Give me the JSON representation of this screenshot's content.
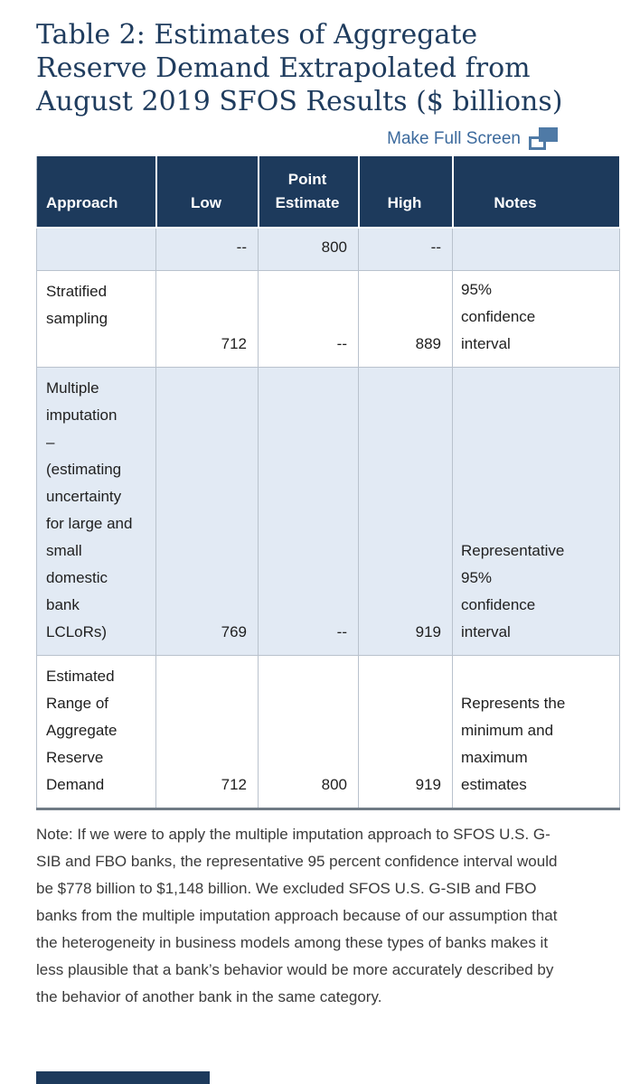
{
  "title": "Table 2: Estimates of Aggregate Reserve Demand Extrapolated from August 2019 SFOS Results ($ billions)",
  "fullscreen": {
    "label": "Make Full Screen"
  },
  "table": {
    "columns": [
      {
        "label": "Approach"
      },
      {
        "label": "Low"
      },
      {
        "label": "Point Estimate"
      },
      {
        "label": "High"
      },
      {
        "label": "Notes"
      }
    ],
    "rows": [
      {
        "approach": "",
        "low": "--",
        "point": "800",
        "high": "--",
        "notes": ""
      },
      {
        "approach": "Stratified sampling",
        "low": "712",
        "point": "--",
        "high": "889",
        "notes": "95% confidence interval"
      },
      {
        "approach": "Multiple imputation\n– (estimating uncertainty for large and small domestic bank LCLoRs)",
        "low": "769",
        "point": "--",
        "high": "919",
        "notes": "Representative 95% confidence interval"
      },
      {
        "approach": "Estimated Range of Aggregate Reserve Demand",
        "low": "712",
        "point": "800",
        "high": "919",
        "notes": "Represents the minimum and maximum estimates"
      }
    ]
  },
  "note": "Note: If we were to apply the multiple imputation approach to SFOS U.S. G-SIB and FBO banks, the representative 95 percent confidence interval would be $778 billion to $1,148 billion. We excluded SFOS U.S. G-SIB and FBO banks from the multiple imputation approach because of our assumption that the heterogeneity in business models among these types of banks makes it less plausible that a bank’s behavior would be more accurately described by the behavior of another bank in the same category.",
  "colors": {
    "header_bg": "#1d3a5c",
    "alt_row_bg": "#e2eaf4",
    "title_text": "#1f3c5e",
    "link_blue": "#3c6a9d",
    "icon_blue": "#4f7aa6"
  }
}
